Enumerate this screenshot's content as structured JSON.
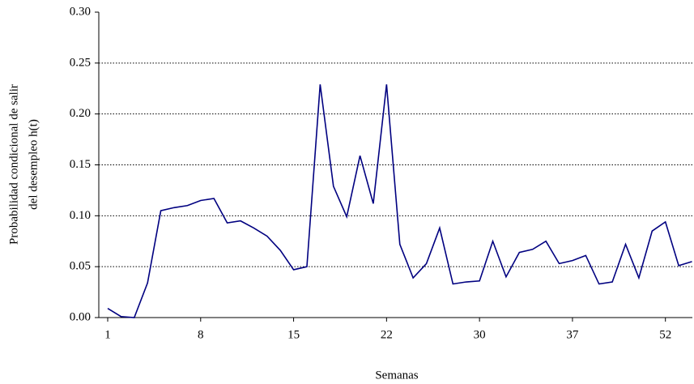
{
  "chart_data": {
    "type": "line",
    "y_label": [
      "Probabilidad condicional de salir",
      "del desempleo h(t)"
    ],
    "x_label": "Semanas",
    "categories": [
      "1",
      null,
      null,
      null,
      null,
      null,
      null,
      "8",
      null,
      null,
      null,
      null,
      null,
      null,
      "15",
      null,
      null,
      null,
      null,
      null,
      null,
      "22",
      null,
      null,
      null,
      null,
      null,
      null,
      "30",
      null,
      null,
      null,
      null,
      null,
      null,
      "37",
      null,
      null,
      null,
      null,
      null,
      null,
      "52",
      null,
      null
    ],
    "series": [
      {
        "color": "#000080",
        "values": [
          0.009,
          0.001,
          0.0,
          0.034,
          0.105,
          0.108,
          0.11,
          0.115,
          0.117,
          0.093,
          0.095,
          0.088,
          0.08,
          0.066,
          0.047,
          0.05,
          0.229,
          0.129,
          0.099,
          0.159,
          0.112,
          0.229,
          0.072,
          0.039,
          0.053,
          0.088,
          0.033,
          0.035,
          0.036,
          0.075,
          0.04,
          0.064,
          0.067,
          0.075,
          0.053,
          0.056,
          0.061,
          0.033,
          0.035,
          0.072,
          0.039,
          0.085,
          0.094,
          0.051,
          0.055
        ]
      }
    ],
    "ylim": [
      0,
      0.3
    ],
    "yticks": [
      {
        "value": 0,
        "label": "0.00"
      },
      {
        "value": 0.05,
        "label": "0.05"
      },
      {
        "value": 0.1,
        "label": "0.10"
      },
      {
        "value": 0.15,
        "label": "0.15"
      },
      {
        "value": 0.2,
        "label": "0.20"
      },
      {
        "value": 0.25,
        "label": "0.25"
      },
      {
        "value": 0.3,
        "label": "0.30"
      }
    ],
    "grid": true
  }
}
